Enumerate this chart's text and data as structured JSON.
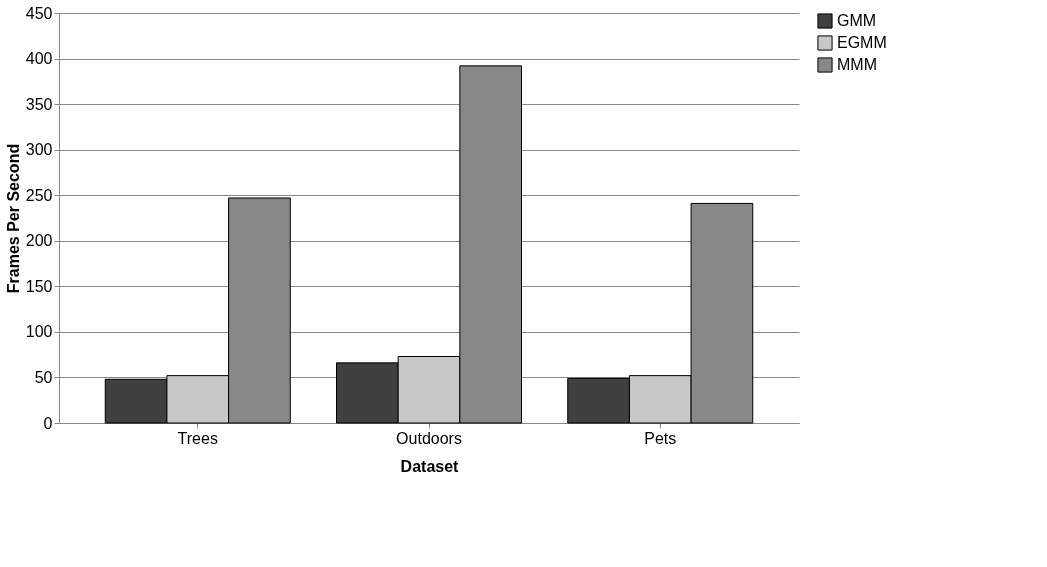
{
  "chart_data": {
    "type": "bar",
    "xlabel": "Dataset",
    "ylabel": "Frames Per Second",
    "categories": [
      "Trees",
      "Outdoors",
      "Pets"
    ],
    "series": [
      {
        "name": "GMM",
        "color": "#404040",
        "values": [
          48,
          66,
          49
        ]
      },
      {
        "name": "EGMM",
        "color": "#c8c8c8",
        "values": [
          52,
          73,
          52
        ]
      },
      {
        "name": "MMM",
        "color": "#888888",
        "values": [
          247,
          392,
          241
        ]
      }
    ],
    "ylim": [
      0,
      450
    ],
    "yticks": [
      0,
      50,
      100,
      150,
      200,
      250,
      300,
      350,
      400,
      450
    ],
    "grid": "y",
    "legend": "right"
  }
}
